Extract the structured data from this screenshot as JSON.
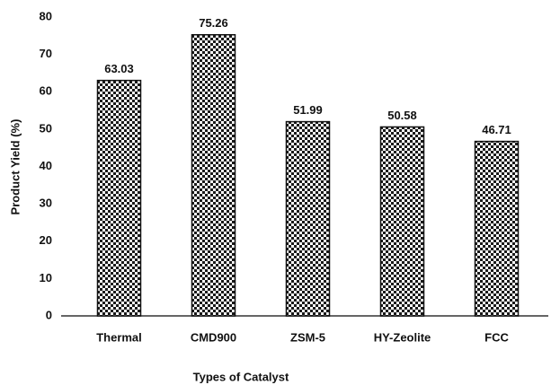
{
  "chart_data": {
    "type": "bar",
    "x_label": "Types of Catalyst",
    "y_label": "Product Yield (%)",
    "categories": [
      "Thermal",
      "CMD900",
      "ZSM-5",
      "HY-Zeolite",
      "FCC"
    ],
    "values": [
      63.03,
      75.26,
      51.99,
      50.58,
      46.71
    ],
    "color": "#1a1a1a",
    "ylim": [
      0,
      80
    ],
    "yticks": [
      0,
      10,
      20,
      30,
      40,
      50,
      60,
      70,
      80
    ],
    "grid": false
  }
}
